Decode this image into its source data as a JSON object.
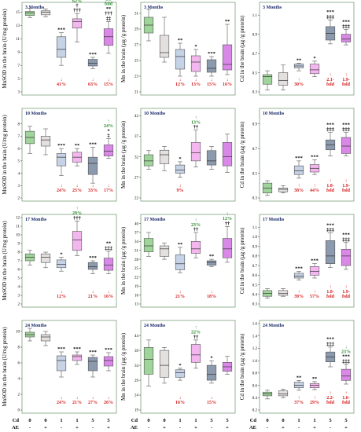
{
  "colors": {
    "control": "#9fd49a",
    "ae": "#e4e0e0",
    "cd1": "#c6d2e6",
    "cd1ae": "#f4b6ee",
    "cd5": "#8c9aae",
    "cd5ae": "#da88e8",
    "frame": "#7aa07a",
    "down": "#d62020",
    "up": "#2e8b2e"
  },
  "groups": {
    "cd_label": "Cd",
    "ae_label": "AE",
    "cd": [
      "0",
      "0",
      "1",
      "1",
      "5",
      "5"
    ],
    "ae": [
      "-",
      "+",
      "-",
      "+",
      "-",
      "+"
    ]
  },
  "chart_data": [
    {
      "type": "box",
      "title": "3 Months",
      "ylabel": "MnSOD in the brain (U/mg protein)",
      "ylim": [
        3,
        16
      ],
      "ticks": [
        "3",
        "5",
        "7",
        "9",
        "11",
        "13",
        "15"
      ],
      "boxes": [
        [
          14.2,
          14.5,
          14.9,
          15.1,
          15.6
        ],
        [
          14.3,
          14.6,
          15.0,
          15.2,
          15.5
        ],
        [
          7.0,
          8.2,
          9.4,
          11.3,
          11.9
        ],
        [
          10.5,
          12.6,
          13.6,
          14.0,
          14.8
        ],
        [
          6.5,
          6.9,
          7.3,
          7.9,
          8.2
        ],
        [
          8.8,
          10.0,
          11.3,
          12.5,
          13.6
        ]
      ],
      "sig_top": [
        "",
        "",
        "***",
        "†\n†††",
        "***",
        "**\n†††\n‡‡"
      ],
      "green_top": [
        "",
        "",
        "",
        "↑\n62%",
        "",
        "↑\n2.3\nfold"
      ],
      "red_bottom": [
        "",
        "",
        "↓\n41%",
        "",
        "↓\n63%",
        "↓\n15%"
      ]
    },
    {
      "type": "box",
      "title": "3 Months",
      "ylabel": "Mn in the brain (µg /g protein)",
      "ylim": [
        21,
        32
      ],
      "ticks": [
        "21",
        "23",
        "25",
        "27",
        "29",
        "31"
      ],
      "boxes": [
        [
          27.5,
          28.5,
          29.5,
          30.5,
          31.5
        ],
        [
          24.8,
          25.4,
          26.0,
          28.2,
          30.5
        ],
        [
          23.0,
          23.9,
          25.5,
          26.4,
          27.2
        ],
        [
          23.0,
          23.6,
          24.8,
          25.6,
          26.4
        ],
        [
          23.0,
          23.5,
          24.0,
          25.1,
          25.5
        ],
        [
          23.2,
          23.8,
          24.5,
          27.0,
          29.6
        ]
      ],
      "sig_top": [
        "",
        "",
        "**",
        "*",
        "***",
        "**"
      ],
      "green_top": [
        "",
        "",
        "",
        "",
        "",
        ""
      ],
      "red_bottom": [
        "",
        "",
        "↓\n12%",
        "↓\n13%",
        "↓\n15%",
        "↓\n16%"
      ]
    },
    {
      "type": "box",
      "title": "3 Months",
      "ylabel": "Cd in the brain (µg /g protein)",
      "ylim": [
        0.3,
        1.2
      ],
      "ticks": [
        "0.3",
        "0.5",
        "0.7",
        "0.9",
        "1.1"
      ],
      "boxes": [
        [
          0.32,
          0.38,
          0.46,
          0.48,
          0.52
        ],
        [
          0.32,
          0.37,
          0.42,
          0.5,
          0.58
        ],
        [
          0.52,
          0.55,
          0.57,
          0.59,
          0.6
        ],
        [
          0.46,
          0.49,
          0.53,
          0.59,
          0.62
        ],
        [
          0.8,
          0.84,
          0.91,
          0.98,
          1.05
        ],
        [
          0.79,
          0.82,
          0.85,
          0.9,
          0.95
        ]
      ],
      "sig_top": [
        "",
        "",
        "**",
        "*",
        "***\n‡‡‡",
        "***\n‡‡‡"
      ],
      "green_top": [
        "",
        "",
        "",
        "",
        "",
        ""
      ],
      "red_bottom": [
        "",
        "",
        "↑\n30%",
        "",
        "↑\n2.1-\nfold",
        "↑\n1.9-\nfold"
      ]
    },
    {
      "type": "box",
      "title": "10 Months",
      "ylabel": "MnSOD in the brain (U/mg protein)",
      "ylim": [
        2,
        9
      ],
      "ticks": [
        "2",
        "3",
        "4",
        "5",
        "6",
        "7",
        "8"
      ],
      "boxes": [
        [
          5.6,
          6.4,
          6.9,
          7.4,
          7.8
        ],
        [
          5.5,
          6.2,
          6.7,
          7.0,
          7.6
        ],
        [
          3.8,
          4.6,
          5.3,
          5.6,
          6.0
        ],
        [
          4.6,
          4.9,
          5.3,
          5.7,
          6.0
        ],
        [
          3.2,
          3.9,
          4.8,
          5.3,
          6.1
        ],
        [
          5.2,
          5.4,
          5.8,
          6.3,
          6.8
        ]
      ],
      "sig_top": [
        "",
        "",
        "***",
        "**",
        "***",
        "*\n‡"
      ],
      "green_top": [
        "",
        "",
        "",
        "",
        "",
        "↑\n24%"
      ],
      "red_bottom": [
        "",
        "",
        "↓\n24%",
        "↓\n25%",
        "↓\n33%",
        "↓\n17%"
      ]
    },
    {
      "type": "box",
      "title": "10 Months",
      "ylabel": "Mn in the brain (µg /g protein)",
      "ylim": [
        22,
        43
      ],
      "ticks": [
        "22",
        "27",
        "32",
        "37",
        "42"
      ],
      "boxes": [
        [
          29.0,
          29.8,
          31.0,
          32.5,
          33.5
        ],
        [
          28.6,
          30.3,
          32.5,
          33.6,
          34.5
        ],
        [
          27.0,
          28.0,
          28.8,
          30.0,
          30.8
        ],
        [
          29.5,
          31.0,
          33.0,
          35.5,
          38.5
        ],
        [
          29.0,
          30.0,
          31.0,
          33.5,
          34.5
        ],
        [
          28.2,
          29.8,
          32.0,
          35.5,
          37.5
        ]
      ],
      "sig_top": [
        "",
        "",
        "*",
        "††",
        "",
        ""
      ],
      "green_top": [
        "",
        "",
        "",
        "↑\n13%",
        "",
        ""
      ],
      "red_bottom": [
        "",
        "",
        "↓\n9%",
        "",
        "",
        ""
      ]
    },
    {
      "type": "box",
      "title": "10 Months",
      "ylabel": "Cd in the brain (µg /g protein)",
      "ylim": [
        0.3,
        1.0
      ],
      "ticks": [
        "0.3",
        "0.5",
        "0.7",
        "0.9"
      ],
      "boxes": [
        [
          0.32,
          0.34,
          0.38,
          0.42,
          0.44
        ],
        [
          0.34,
          0.35,
          0.37,
          0.38,
          0.4
        ],
        [
          0.46,
          0.49,
          0.52,
          0.56,
          0.6
        ],
        [
          0.49,
          0.51,
          0.54,
          0.57,
          0.61
        ],
        [
          0.64,
          0.69,
          0.73,
          0.77,
          0.83
        ],
        [
          0.64,
          0.66,
          0.72,
          0.79,
          0.83
        ]
      ],
      "sig_top": [
        "",
        "",
        "***",
        "***",
        "***\n‡‡‡",
        "***\n‡‡‡"
      ],
      "green_top": [
        "",
        "",
        "",
        "",
        "",
        ""
      ],
      "red_bottom": [
        "",
        "",
        "↑\n38%",
        "↑\n44%",
        "↑\n1.8-\nfold",
        "↑\n1.9-\nfold"
      ]
    },
    {
      "type": "box",
      "title": "17 Months",
      "ylabel": "MnSOD in the brain (U/mg protein)",
      "ylim": [
        2,
        12
      ],
      "ticks": [
        "2",
        "3",
        "4",
        "5",
        "6",
        "7",
        "8",
        "9",
        "10",
        "11",
        "12"
      ],
      "boxes": [
        [
          6.5,
          7.0,
          7.4,
          7.8,
          8.2
        ],
        [
          6.2,
          6.8,
          7.4,
          7.8,
          8.0
        ],
        [
          5.8,
          6.2,
          6.6,
          7.1,
          7.4
        ],
        [
          7.6,
          8.2,
          9.4,
          10.4,
          11.6
        ],
        [
          5.5,
          6.0,
          6.3,
          6.8,
          7.0
        ],
        [
          5.5,
          5.9,
          6.5,
          7.3,
          8.1
        ]
      ],
      "sig_top": [
        "",
        "",
        "*",
        "†††",
        "***",
        "**\n‡‡‡"
      ],
      "green_top": [
        "",
        "",
        "",
        "↑\n29%",
        "",
        ""
      ],
      "red_bottom": [
        "",
        "",
        "↓\n12%",
        "",
        "↓\n21%",
        "↓\n16%"
      ]
    },
    {
      "type": "box",
      "title": "17 Months",
      "ylabel": "Mn in the brain (µg /g protein)",
      "ylim": [
        13,
        42
      ],
      "ticks": [
        "13",
        "16",
        "19",
        "22",
        "25",
        "28",
        "31",
        "34",
        "37",
        "40"
      ],
      "boxes": [
        [
          29.0,
          30.5,
          32.5,
          35.0,
          37.0
        ],
        [
          28.0,
          29.0,
          31.5,
          32.5,
          33.5
        ],
        [
          23.5,
          24.5,
          26.5,
          29.5,
          32.0
        ],
        [
          28.5,
          30.0,
          31.5,
          34.0,
          37.0
        ],
        [
          25.5,
          26.0,
          27.0,
          27.5,
          28.0
        ],
        [
          27.0,
          28.5,
          31.5,
          35.0,
          39.0
        ]
      ],
      "sig_top": [
        "",
        "",
        "**",
        "††",
        "**",
        "††"
      ],
      "green_top": [
        "",
        "",
        "",
        "↑\n23%",
        "",
        "↑\n12%"
      ],
      "red_bottom": [
        "",
        "",
        "↓\n21%",
        "",
        "↓\n18%",
        ""
      ]
    },
    {
      "type": "box",
      "title": "17 Months",
      "ylabel": "Cd in the brain (µg /g protein)",
      "ylim": [
        0.3,
        1.2
      ],
      "ticks": [
        "0.3",
        "0.4",
        "0.5",
        "0.6",
        "0.7",
        "0.8",
        "0.9",
        "1.0",
        "1.1"
      ],
      "boxes": [
        [
          0.36,
          0.38,
          0.41,
          0.44,
          0.46
        ],
        [
          0.38,
          0.39,
          0.41,
          0.44,
          0.46
        ],
        [
          0.55,
          0.57,
          0.59,
          0.62,
          0.64
        ],
        [
          0.57,
          0.6,
          0.64,
          0.69,
          0.72
        ],
        [
          0.68,
          0.72,
          0.8,
          0.96,
          1.04
        ],
        [
          0.66,
          0.7,
          0.8,
          0.87,
          0.94
        ]
      ],
      "sig_top": [
        "",
        "",
        "***",
        "***",
        "***\n‡‡‡",
        "***\n‡‡‡"
      ],
      "green_top": [
        "",
        "",
        "",
        "",
        "",
        ""
      ],
      "red_bottom": [
        "",
        "",
        "↑\n39%",
        "↑\n57%",
        "↑\n1.8-\nfold",
        "↑\n1.9-\nfold"
      ]
    },
    {
      "type": "box",
      "title": "24 Months",
      "ylabel": "MnSOD in the brain (U/mg protein)",
      "ylim": [
        0,
        11
      ],
      "ticks": [
        "0",
        "2",
        "4",
        "6",
        "8",
        "10"
      ],
      "boxes": [
        [
          8.8,
          9.3,
          9.6,
          9.9,
          10.4
        ],
        [
          8.2,
          8.8,
          9.3,
          9.6,
          10.0
        ],
        [
          4.2,
          5.0,
          6.3,
          6.9,
          7.4
        ],
        [
          5.8,
          6.3,
          6.8,
          7.0,
          7.4
        ],
        [
          4.2,
          5.0,
          6.2,
          6.7,
          7.0
        ],
        [
          5.0,
          5.6,
          6.3,
          6.8,
          7.3
        ]
      ],
      "sig_top": [
        "",
        "",
        "***",
        "***",
        "***",
        "***"
      ],
      "green_top": [
        "",
        "",
        "",
        "",
        "",
        ""
      ],
      "red_bottom": [
        "",
        "",
        "↓\n24%",
        "↓\n21%",
        "↓\n27%",
        "↓\n26%"
      ]
    },
    {
      "type": "box",
      "title": "24 Months",
      "ylabel": "Mn in the brain (µg /g protein)",
      "ylim": [
        19,
        48
      ],
      "ticks": [
        "19",
        "24",
        "29",
        "34",
        "39",
        "44"
      ],
      "boxes": [
        [
          27.0,
          31.0,
          36.0,
          40.0,
          42.5
        ],
        [
          28.0,
          30.0,
          34.0,
          39.0,
          40.0
        ],
        [
          29.0,
          30.0,
          31.5,
          32.5,
          33.0
        ],
        [
          33.0,
          35.0,
          37.5,
          41.0,
          42.5
        ],
        [
          28.0,
          29.0,
          31.0,
          34.0,
          35.5
        ],
        [
          31.0,
          32.0,
          33.5,
          35.0,
          37.0
        ]
      ],
      "sig_top": [
        "",
        "",
        "*",
        "††",
        "*",
        ""
      ],
      "green_top": [
        "",
        "",
        "",
        "↑\n22%",
        "",
        ""
      ],
      "red_bottom": [
        "",
        "",
        "↓\n16%",
        "",
        "↓\n15%",
        ""
      ]
    },
    {
      "type": "box",
      "title": "24 Months",
      "ylabel": "Cd in the brain (µg /g protein)",
      "ylim": [
        0.2,
        1.6
      ],
      "ticks": [
        "0.2",
        "0.4",
        "0.6",
        "0.8",
        "1.0",
        "1.2",
        "1.4",
        "1.6"
      ],
      "boxes": [
        [
          0.38,
          0.43,
          0.46,
          0.49,
          0.52
        ],
        [
          0.4,
          0.43,
          0.46,
          0.51,
          0.54
        ],
        [
          0.52,
          0.56,
          0.6,
          0.65,
          0.68
        ],
        [
          0.53,
          0.56,
          0.6,
          0.63,
          0.66
        ],
        [
          0.9,
          0.98,
          1.06,
          1.14,
          1.22
        ],
        [
          0.62,
          0.68,
          0.75,
          0.86,
          0.94
        ]
      ],
      "sig_top": [
        "",
        "",
        "**",
        "**",
        "***\n‡‡‡",
        "***\n‡‡‡"
      ],
      "green_top": [
        "",
        "",
        "",
        "",
        "",
        "↓\n23%"
      ],
      "red_bottom": [
        "",
        "",
        "↑\n37%",
        "↑\n29%",
        "↑\n2.2-\nfold",
        "↑\n1.6-\nfold"
      ]
    }
  ]
}
